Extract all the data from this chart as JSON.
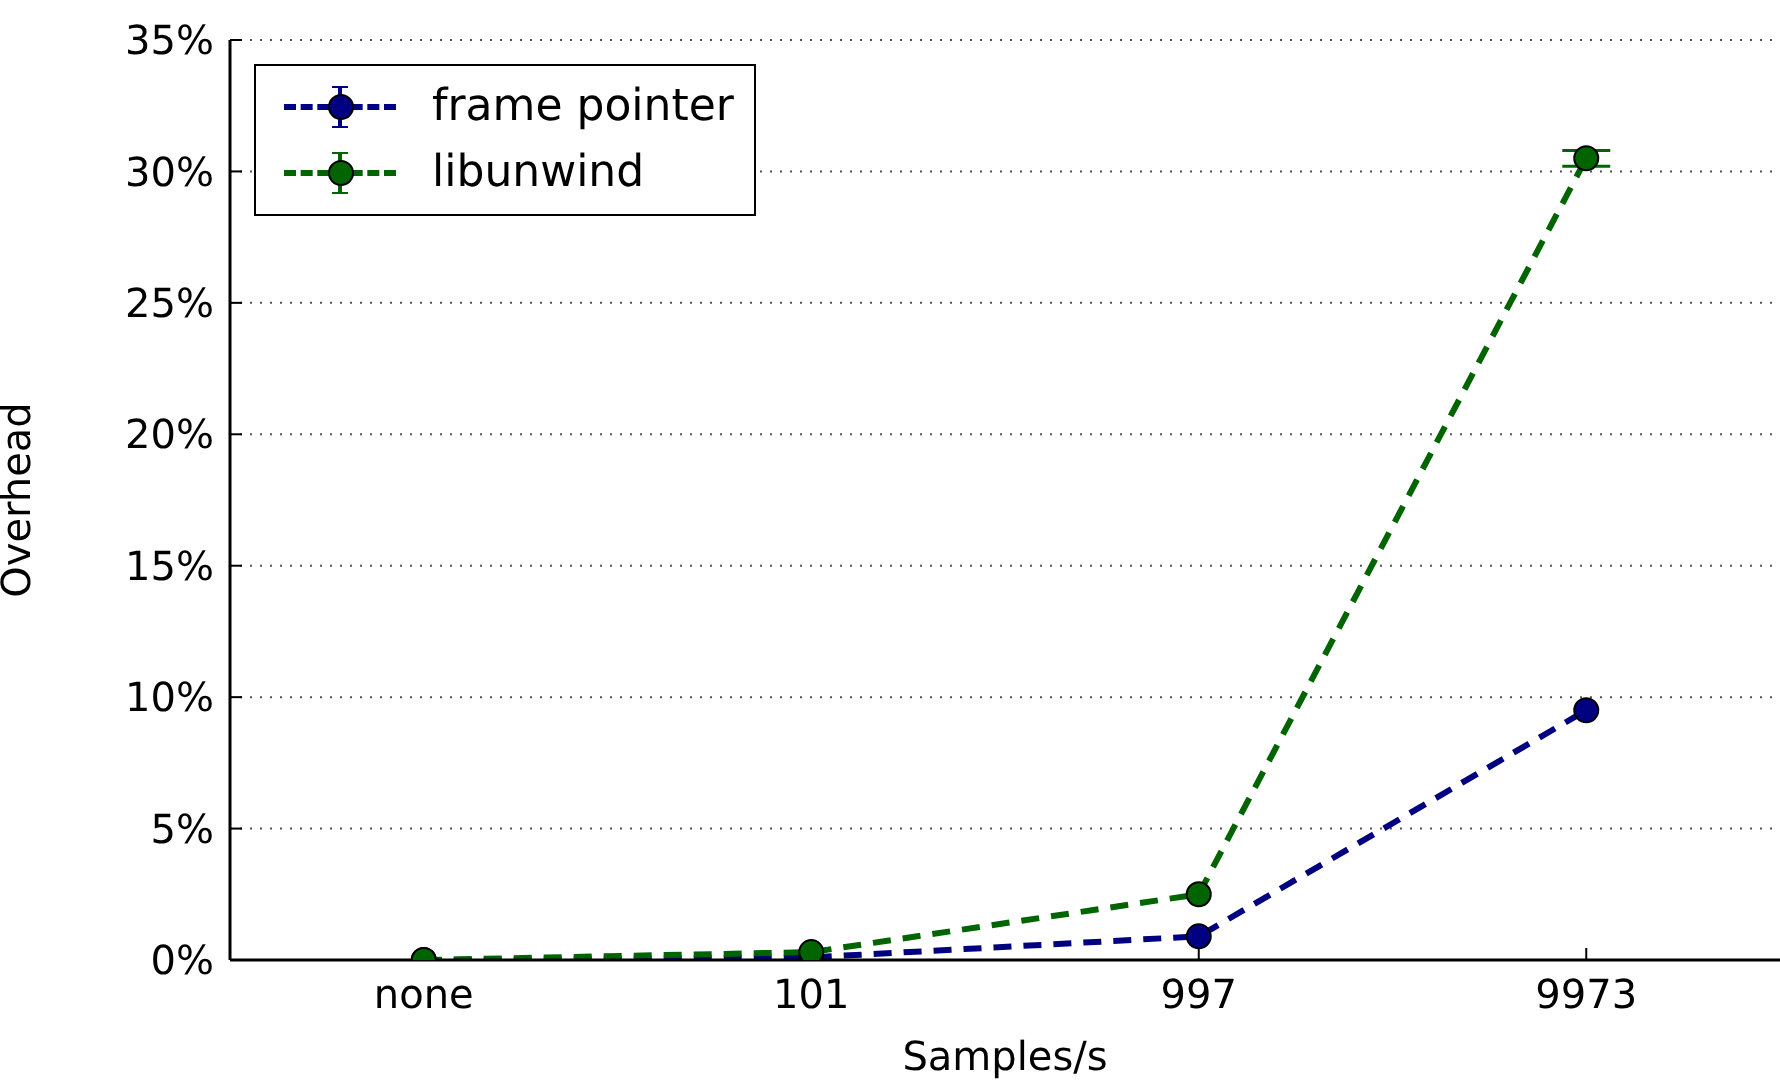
{
  "chart_data": {
    "type": "line",
    "xlabel": "Samples/s",
    "ylabel": "Overhead",
    "categories": [
      "none",
      "101",
      "997",
      "9973"
    ],
    "series": [
      {
        "name": "frame pointer",
        "color": "#000080",
        "values": [
          0,
          0.1,
          0.9,
          9.5
        ]
      },
      {
        "name": "libunwind",
        "color": "#006400",
        "values": [
          0,
          0.3,
          2.5,
          30.5
        ],
        "errors": [
          null,
          null,
          null,
          0.3
        ]
      }
    ],
    "ylim": [
      0,
      35
    ],
    "yticks": [
      {
        "value": 0,
        "label": "0%"
      },
      {
        "value": 5,
        "label": "5%"
      },
      {
        "value": 10,
        "label": "10%"
      },
      {
        "value": 15,
        "label": "15%"
      },
      {
        "value": 20,
        "label": "20%"
      },
      {
        "value": 25,
        "label": "25%"
      },
      {
        "value": 30,
        "label": "30%"
      },
      {
        "value": 35,
        "label": "35%"
      }
    ],
    "grid": "y",
    "legend": "top left",
    "marker": "circle",
    "line_style": "dashed"
  }
}
